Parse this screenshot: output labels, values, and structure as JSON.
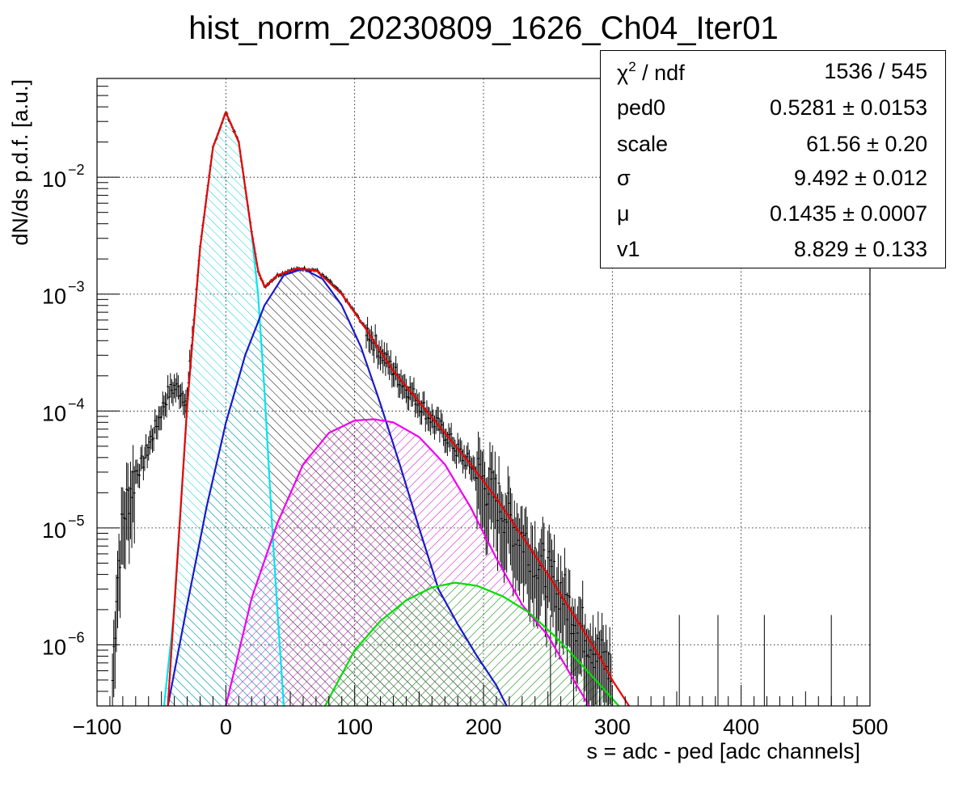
{
  "chart_data": {
    "type": "line",
    "title": "hist_norm_20230809_1626_Ch04_Iter01",
    "xlabel": "s = adc - ped [adc channels]",
    "ylabel": "dN/ds p.d.f. [a.u.]",
    "xlim": [
      -100,
      500
    ],
    "ylim": [
      3e-07,
      0.07
    ],
    "yscale": "log",
    "grid": true,
    "x_ticks": [
      "−100",
      "0",
      "100",
      "200",
      "300",
      "400",
      "500"
    ],
    "y_ticks": [
      {
        "base": "10",
        "exp": "−6",
        "value": 1e-06
      },
      {
        "base": "10",
        "exp": "−5",
        "value": 1e-05
      },
      {
        "base": "10",
        "exp": "−4",
        "value": 0.0001
      },
      {
        "base": "10",
        "exp": "−3",
        "value": 0.001
      },
      {
        "base": "10",
        "exp": "−2",
        "value": 0.01
      }
    ],
    "stats": [
      {
        "label": "χ",
        "sup": "2",
        "label_rest": " / ndf",
        "value": "1536 / 545"
      },
      {
        "label": "ped0",
        "value": "0.5281 ± 0.0153"
      },
      {
        "label": "scale",
        "value": "61.56 ± 0.20"
      },
      {
        "label": "σ",
        "value": "9.492 ± 0.012"
      },
      {
        "label": "μ",
        "value": "0.1435 ± 0.0007"
      },
      {
        "label": "v1",
        "value": "8.829 ± 0.133"
      }
    ],
    "series": [
      {
        "color": "#00e5ee",
        "x": [
          -48,
          -40,
          -30,
          -20,
          -10,
          0,
          10,
          20,
          25,
          30,
          36,
          40,
          45
        ],
        "y": [
          3e-07,
          2e-06,
          0.00011,
          0.0025,
          0.018,
          0.036,
          0.02,
          0.0033,
          0.001,
          0.00015,
          1e-05,
          2e-06,
          3e-07
        ]
      },
      {
        "color": "#1a1acc",
        "x": [
          -45,
          -30,
          -15,
          0,
          15,
          30,
          45,
          60,
          75,
          90,
          105,
          120,
          135,
          150,
          165,
          180,
          195,
          210,
          218
        ],
        "y": [
          3e-07,
          2.2e-06,
          1.5e-05,
          7.9e-05,
          0.0003,
          0.0008,
          0.00145,
          0.00165,
          0.00135,
          0.0008,
          0.00035,
          0.000115,
          3.5e-05,
          1e-05,
          3e-06,
          1.5e-06,
          8e-07,
          4.5e-07,
          3e-07
        ]
      },
      {
        "color": "#ee00ee",
        "x": [
          0,
          20,
          40,
          60,
          80,
          100,
          115,
          130,
          150,
          170,
          190,
          210,
          230,
          250,
          270,
          282
        ],
        "y": [
          3e-07,
          2.5e-06,
          1.1e-05,
          3.5e-05,
          6.5e-05,
          8.3e-05,
          8.5e-05,
          8e-05,
          6e-05,
          3.5e-05,
          1.5e-05,
          5.5e-06,
          2.2e-06,
          1.2e-06,
          5e-07,
          3e-07
        ]
      },
      {
        "color": "#00dd00",
        "x": [
          77,
          100,
          120,
          140,
          160,
          178,
          195,
          215,
          235,
          255,
          275,
          295,
          305
        ],
        "y": [
          3e-07,
          9e-07,
          1.6e-06,
          2.4e-06,
          3.1e-06,
          3.4e-06,
          3.2e-06,
          2.6e-06,
          1.9e-06,
          1.2e-06,
          7e-07,
          4e-07,
          3e-07
        ]
      },
      {
        "color": "#ee0000",
        "x": [
          -45,
          -30,
          -20,
          -10,
          0,
          10,
          20,
          25,
          30,
          40,
          55,
          70,
          90,
          110,
          130,
          150,
          170,
          190,
          210,
          230,
          250,
          270,
          290,
          300,
          313
        ],
        "y": [
          3e-07,
          0.00011,
          0.0025,
          0.018,
          0.036,
          0.02,
          0.0034,
          0.0016,
          0.00115,
          0.00145,
          0.00165,
          0.0016,
          0.001,
          0.00048,
          0.00022,
          0.00012,
          6.5e-05,
          3.5e-05,
          1.8e-05,
          8.5e-06,
          4e-06,
          1.8e-06,
          8e-07,
          5e-07,
          3e-07
        ]
      },
      {
        "color": "#000000",
        "x": [
          -88,
          -85,
          -80,
          -75,
          -70,
          -65,
          -60,
          -55,
          -50,
          -45,
          -40,
          -35,
          -30,
          -25,
          -20,
          -10,
          0,
          10,
          20,
          25,
          30,
          35,
          40,
          50,
          60,
          70,
          80,
          90,
          100,
          110,
          120,
          130,
          140,
          150,
          160,
          170,
          180,
          190,
          200,
          210,
          220,
          230,
          240,
          250,
          260,
          270,
          280,
          290,
          300
        ],
        "y": [
          5e-07,
          3e-06,
          1.2e-05,
          2e-05,
          3e-05,
          3.5e-05,
          5e-05,
          7e-05,
          0.0001,
          0.00014,
          0.00016,
          0.00015,
          0.00012,
          0.0006,
          0.0026,
          0.018,
          0.036,
          0.02,
          0.0034,
          0.0016,
          0.00115,
          0.0013,
          0.00145,
          0.0016,
          0.00165,
          0.0016,
          0.0013,
          0.001,
          0.0007,
          0.00048,
          0.00032,
          0.00022,
          0.00016,
          0.00012,
          8.5e-05,
          6.5e-05,
          4.5e-05,
          3.5e-05,
          2.5e-05,
          1.8e-05,
          1.2e-05,
          8.5e-06,
          6e-06,
          4e-06,
          3e-06,
          1.8e-06,
          1.2e-06,
          8e-07,
          6e-07
        ]
      }
    ]
  }
}
